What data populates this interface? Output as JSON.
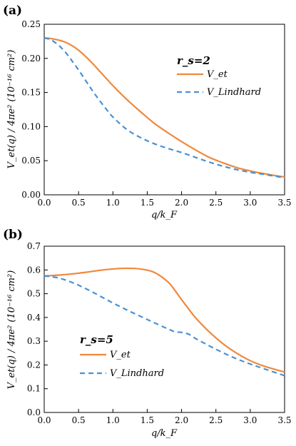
{
  "chart_data": [
    {
      "type": "line",
      "panel_label": "(a)",
      "xlabel": "q/k_F",
      "ylabel": "V_et(q) / 4πe² (10⁻¹⁶ cm²)",
      "xlim": [
        0,
        3.5
      ],
      "ylim": [
        0,
        0.25
      ],
      "xticks": [
        0,
        0.5,
        1.0,
        1.5,
        2.0,
        2.5,
        3.0,
        3.5
      ],
      "xtick_labels": [
        "0.0",
        "0.5",
        "1.0",
        "1.5",
        "2.0",
        "2.5",
        "3.0",
        "3.5"
      ],
      "yticks": [
        0,
        0.05,
        0.1,
        0.15,
        0.2,
        0.25
      ],
      "ytick_labels": [
        "0.00",
        "0.05",
        "0.10",
        "0.15",
        "0.20",
        "0.25"
      ],
      "grid": false,
      "legend_position": "upper-right",
      "legend_title": "r_s=2",
      "series": [
        {
          "name": "V_et",
          "color": "#f0883a",
          "style": "solid",
          "x": [
            0,
            0.1,
            0.2,
            0.3,
            0.4,
            0.5,
            0.6,
            0.7,
            0.8,
            0.9,
            1.0,
            1.2,
            1.4,
            1.6,
            1.8,
            2.0,
            2.2,
            2.4,
            2.6,
            2.8,
            3.0,
            3.2,
            3.5
          ],
          "y": [
            0.23,
            0.229,
            0.227,
            0.224,
            0.219,
            0.212,
            0.203,
            0.193,
            0.182,
            0.171,
            0.16,
            0.14,
            0.122,
            0.105,
            0.091,
            0.078,
            0.066,
            0.055,
            0.047,
            0.04,
            0.035,
            0.031,
            0.026
          ]
        },
        {
          "name": "V_Lindhard",
          "color": "#4a90d6",
          "style": "dashed",
          "x": [
            0,
            0.1,
            0.2,
            0.3,
            0.4,
            0.5,
            0.6,
            0.7,
            0.8,
            0.9,
            1.0,
            1.2,
            1.4,
            1.6,
            1.8,
            2.0,
            2.2,
            2.4,
            2.6,
            2.8,
            3.0,
            3.2,
            3.5
          ],
          "y": [
            0.23,
            0.227,
            0.22,
            0.21,
            0.197,
            0.183,
            0.168,
            0.153,
            0.139,
            0.126,
            0.114,
            0.096,
            0.084,
            0.075,
            0.068,
            0.062,
            0.055,
            0.048,
            0.042,
            0.037,
            0.033,
            0.03,
            0.025
          ]
        }
      ]
    },
    {
      "type": "line",
      "panel_label": "(b)",
      "xlabel": "q/k_F",
      "ylabel": "V_et(q) / 4πe² (10⁻¹⁶ cm²)",
      "xlim": [
        0,
        3.5
      ],
      "ylim": [
        0,
        0.7
      ],
      "xticks": [
        0,
        0.5,
        1.0,
        1.5,
        2.0,
        2.5,
        3.0,
        3.5
      ],
      "xtick_labels": [
        "0.0",
        "0.5",
        "1.0",
        "1.5",
        "2.0",
        "2.5",
        "3.0",
        "3.5"
      ],
      "yticks": [
        0,
        0.1,
        0.2,
        0.3,
        0.4,
        0.5,
        0.6,
        0.7
      ],
      "ytick_labels": [
        "0.0",
        "0.1",
        "0.2",
        "0.3",
        "0.4",
        "0.5",
        "0.6",
        "0.7"
      ],
      "grid": false,
      "legend_position": "lower-left",
      "legend_title": "r_s=5",
      "series": [
        {
          "name": "V_et",
          "color": "#f0883a",
          "style": "solid",
          "x": [
            0,
            0.2,
            0.4,
            0.6,
            0.8,
            1.0,
            1.2,
            1.4,
            1.6,
            1.8,
            1.9,
            2.0,
            2.1,
            2.2,
            2.4,
            2.6,
            2.8,
            3.0,
            3.2,
            3.5
          ],
          "y": [
            0.575,
            0.578,
            0.583,
            0.59,
            0.598,
            0.604,
            0.607,
            0.604,
            0.59,
            0.55,
            0.515,
            0.475,
            0.437,
            0.4,
            0.34,
            0.29,
            0.25,
            0.218,
            0.195,
            0.17
          ]
        },
        {
          "name": "V_Lindhard",
          "color": "#4a90d6",
          "style": "dashed",
          "x": [
            0,
            0.2,
            0.4,
            0.6,
            0.8,
            1.0,
            1.2,
            1.4,
            1.6,
            1.8,
            1.9,
            2.0,
            2.1,
            2.2,
            2.4,
            2.6,
            2.8,
            3.0,
            3.2,
            3.5
          ],
          "y": [
            0.575,
            0.567,
            0.548,
            0.522,
            0.492,
            0.461,
            0.432,
            0.405,
            0.378,
            0.352,
            0.34,
            0.337,
            0.33,
            0.312,
            0.281,
            0.252,
            0.226,
            0.204,
            0.184,
            0.155
          ]
        }
      ]
    }
  ]
}
